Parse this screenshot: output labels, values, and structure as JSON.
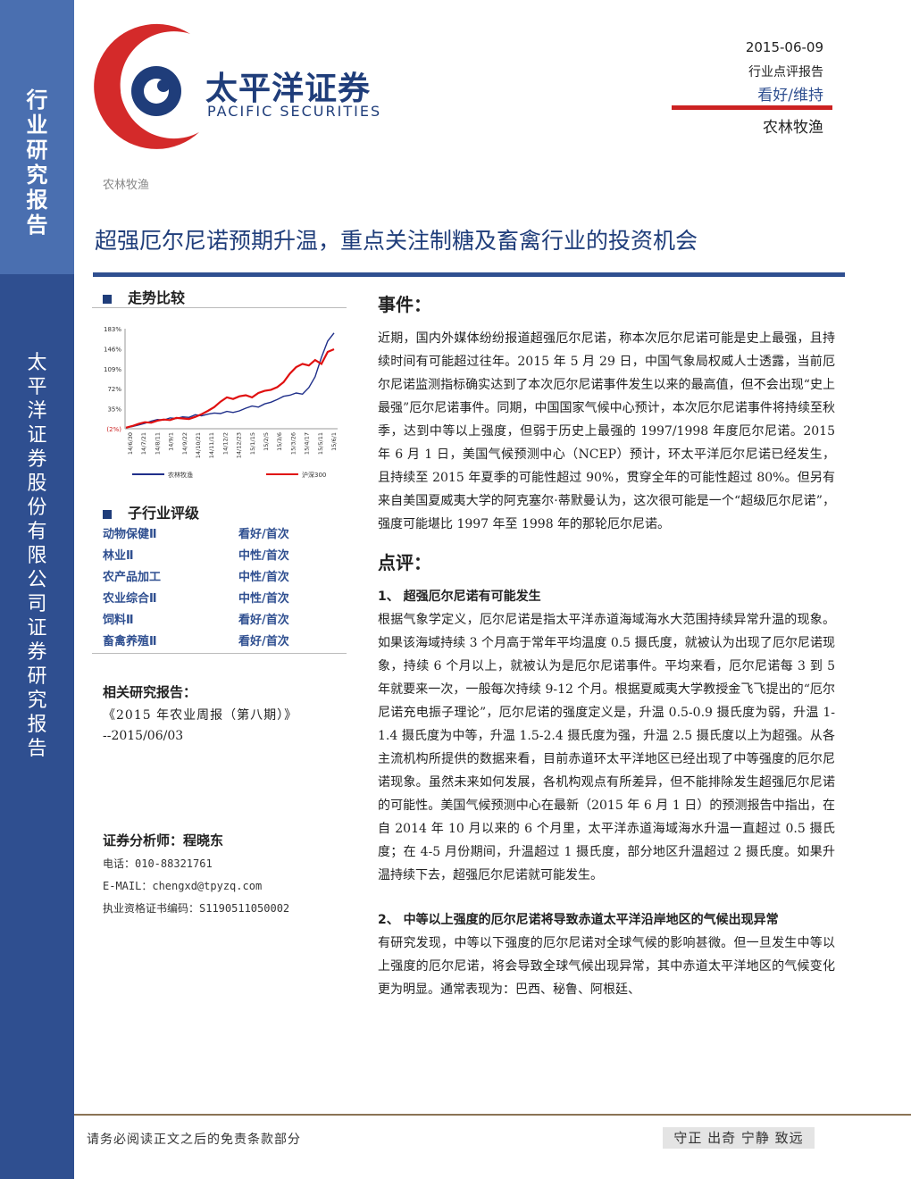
{
  "sidebar": {
    "report_type_chars": [
      "行",
      "业",
      "研",
      "究",
      "报",
      "告"
    ],
    "company_chars": [
      "太",
      "平",
      "洋",
      "证",
      "券",
      "股",
      "份",
      "有",
      "限",
      "公",
      "司",
      "证",
      "券",
      "研",
      "究",
      "报",
      "告"
    ]
  },
  "logo": {
    "cn": "太平洋证券",
    "en": "PACIFIC SECURITIES"
  },
  "header": {
    "date": "2015-06-09",
    "report_type": "行业点评报告",
    "rating": "看好/维持",
    "sector": "农林牧渔"
  },
  "breadcrumb": "农林牧渔",
  "title": "超强厄尔尼诺预期升温，重点关注制糖及畜禽行业的投资机会",
  "trend_section": {
    "heading": "走势比较"
  },
  "chart_data": {
    "type": "line",
    "y_tick_labels": [
      "183%",
      "146%",
      "109%",
      "72%",
      "35%",
      "(2%)"
    ],
    "y_ticks": [
      183,
      146,
      109,
      72,
      35,
      -2
    ],
    "ylim": [
      -2,
      183
    ],
    "x_tick_labels": [
      "14/6/30",
      "14/7/21",
      "14/8/11",
      "14/9/1",
      "14/9/22",
      "14/10/21",
      "14/11/11",
      "14/12/2",
      "14/12/23",
      "15/1/15",
      "15/2/5",
      "15/3/6",
      "15/3/26",
      "15/4/17",
      "15/5/11",
      "15/6/1"
    ],
    "series": [
      {
        "name": "农林牧渔",
        "color": "#1f2f8a",
        "values": [
          0,
          2,
          5,
          8,
          12,
          15,
          14,
          18,
          17,
          20,
          19,
          24,
          22,
          25,
          27,
          26,
          30,
          28,
          31,
          36,
          40,
          38,
          44,
          47,
          52,
          58,
          60,
          64,
          62,
          74,
          94,
          130,
          160,
          175
        ]
      },
      {
        "name": "沪深300",
        "color": "#e01010",
        "values": [
          0,
          3,
          7,
          10,
          9,
          13,
          15,
          14,
          18,
          17,
          16,
          20,
          25,
          31,
          38,
          48,
          56,
          53,
          58,
          60,
          56,
          64,
          68,
          70,
          75,
          84,
          100,
          112,
          118,
          115,
          125,
          118,
          140,
          145
        ]
      }
    ]
  },
  "sub_ratings": {
    "heading": "子行业评级",
    "rows": [
      {
        "name": "动物保健Ⅱ",
        "rating": "看好/首次"
      },
      {
        "name": "林业Ⅱ",
        "rating": "中性/首次"
      },
      {
        "name": "农产品加工",
        "rating": "中性/首次"
      },
      {
        "name": "农业综合Ⅱ",
        "rating": "中性/首次"
      },
      {
        "name": "饲料Ⅱ",
        "rating": "看好/首次"
      },
      {
        "name": "畜禽养殖Ⅱ",
        "rating": "看好/首次"
      }
    ]
  },
  "related": {
    "heading": "相关研究报告：",
    "line1": "《2015 年农业周报（第八期）》",
    "line2": "--2015/06/03"
  },
  "analyst": {
    "label": "证券分析师：程晓东",
    "phone": "电话：010-88321761",
    "email": "E-MAIL：chengxd@tpyzq.com",
    "cert": "执业资格证书编码：S1190511050002"
  },
  "body": {
    "event_heading": "事件：",
    "event_text": "近期，国内外媒体纷纷报道超强厄尔尼诺，称本次厄尔尼诺可能是史上最强，且持续时间有可能超过往年。2015 年 5 月 29 日，中国气象局权威人士透露，当前厄尔尼诺监测指标确实达到了本次厄尔尼诺事件发生以来的最高值，但不会出现“史上最强”厄尔尼诺事件。同期，中国国家气候中心预计，本次厄尔尼诺事件将持续至秋季，达到中等以上强度，但弱于历史上最强的 1997/1998 年度厄尔尼诺。2015 年 6 月 1 日，美国气候预测中心（NCEP）预计，环太平洋厄尔尼诺已经发生，且持续至 2015 年夏季的可能性超过 90%，贯穿全年的可能性超过 80%。但另有来自美国夏威夷大学的阿克塞尔·蒂默曼认为，这次很可能是一个“超级厄尔尼诺”，强度可能堪比 1997 年至 1998 年的那轮厄尔尼诺。",
    "review_heading": "点评：",
    "sub1": "1、 超强厄尔尼诺有可能发生",
    "sub1_text": "根据气象学定义，厄尔尼诺是指太平洋赤道海域海水大范围持续异常升温的现象。如果该海域持续 3 个月高于常年平均温度 0.5 摄氏度，就被认为出现了厄尔尼诺现象，持续 6 个月以上，就被认为是厄尔尼诺事件。平均来看，厄尔尼诺每 3 到 5 年就要来一次，一般每次持续 9-12 个月。根据夏威夷大学教授金飞飞提出的“厄尔尼诺充电振子理论”，厄尔尼诺的强度定义是，升温 0.5-0.9 摄氏度为弱，升温 1-1.4 摄氏度为中等，升温 1.5-2.4 摄氏度为强，升温 2.5 摄氏度以上为超强。从各主流机构所提供的数据来看，目前赤道环太平洋地区已经出现了中等强度的厄尔尼诺现象。虽然未来如何发展，各机构观点有所差异，但不能排除发生超强厄尔尼诺的可能性。美国气候预测中心在最新（2015 年 6 月 1 日）的预测报告中指出，在自 2014 年 10 月以来的 6 个月里，太平洋赤道海域海水升温一直超过 0.5 摄氏度；在 4-5 月份期间，升温超过 1 摄氏度，部分地区升温超过 2 摄氏度。如果升温持续下去，超强厄尔尼诺就可能发生。",
    "sub2": "2、 中等以上强度的厄尔尼诺将导致赤道太平洋沿岸地区的气候出现异常",
    "sub2_text": "有研究发现，中等以下强度的厄尔尼诺对全球气候的影响甚微。但一旦发生中等以上强度的厄尔尼诺，将会导致全球气候出现异常，其中赤道太平洋地区的气候变化更为明显。通常表现为：巴西、秘鲁、阿根廷、"
  },
  "footer": {
    "disclaimer": "请务必阅读正文之后的免责条款部分",
    "motto": "守正 出奇 宁静 致远"
  },
  "colors": {
    "brand_blue": "#2f4f90",
    "brand_red": "#cc2222"
  }
}
